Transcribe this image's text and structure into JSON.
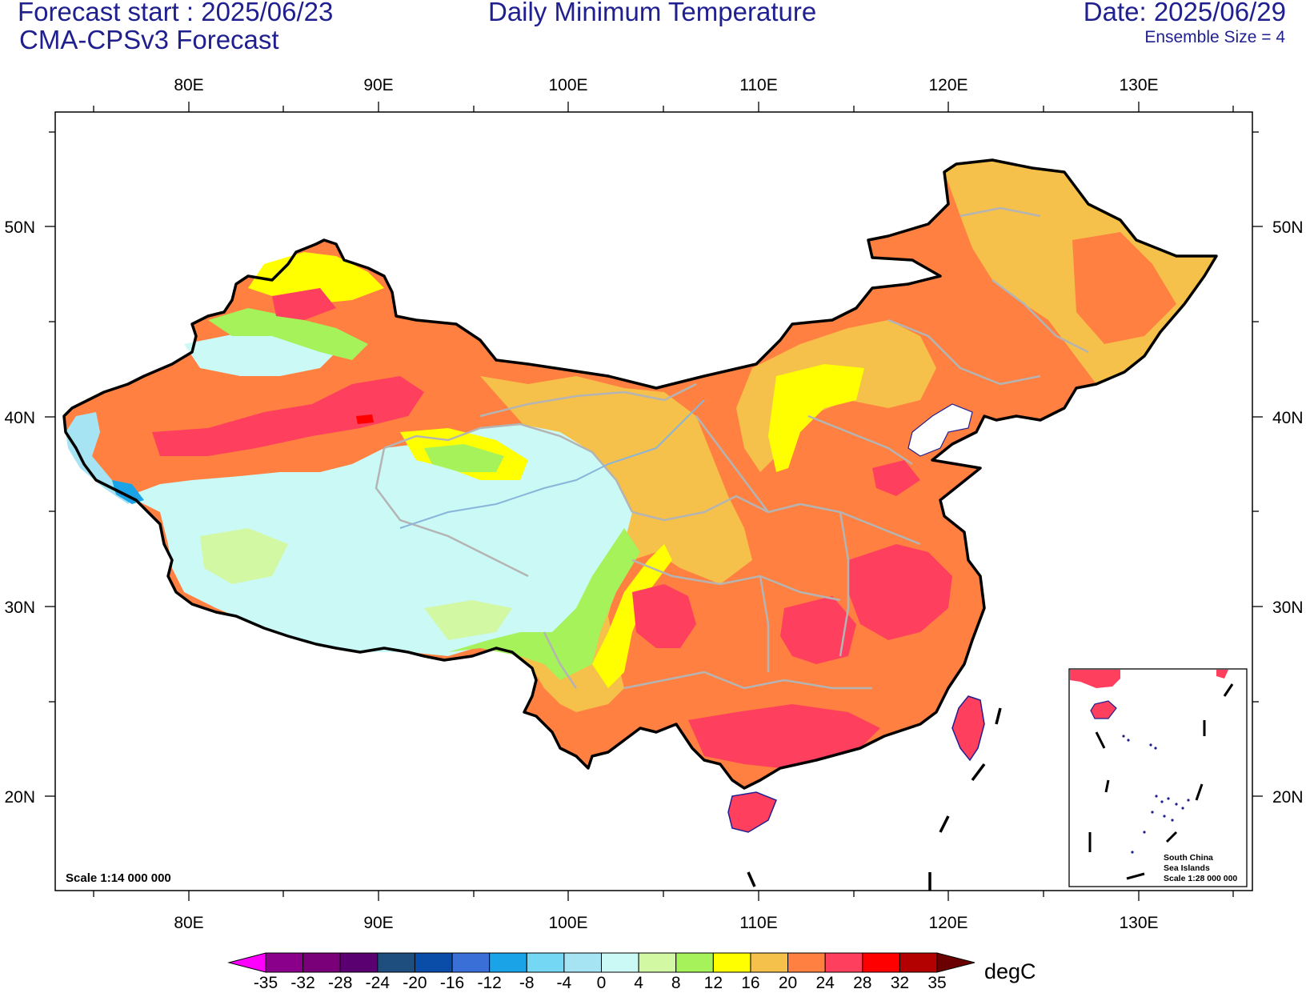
{
  "header": {
    "forecast_start": "Forecast start : 2025/06/23",
    "model": "CMA-CPSv3 Forecast",
    "title": "Daily Minimum Temperature",
    "date": "Date: 2025/06/29",
    "ensemble": "Ensemble Size = 4"
  },
  "map": {
    "longitude_labels": [
      "80E",
      "90E",
      "100E",
      "110E",
      "120E",
      "130E"
    ],
    "latitude_labels": [
      "50N",
      "40N",
      "30N",
      "20N"
    ],
    "scale_text": "Scale 1:14 000 000",
    "inset": {
      "line1": "South China",
      "line2": "Sea Islands",
      "line3": "Scale 1:28 000 000"
    }
  },
  "colorbar": {
    "unit": "degC",
    "labels": [
      "-35",
      "-32",
      "-28",
      "-24",
      "-20",
      "-16",
      "-12",
      "-8",
      "-4",
      "0",
      "4",
      "8",
      "12",
      "16",
      "20",
      "24",
      "28",
      "32",
      "35"
    ],
    "colors": [
      "#8b008b",
      "#7a007a",
      "#5a0070",
      "#1d4e7d",
      "#0a4da8",
      "#3a6fd8",
      "#1aa3e6",
      "#74d7f4",
      "#a6e3f3",
      "#caf9f6",
      "#d3f8a4",
      "#a6f25a",
      "#ffff00",
      "#f5c14a",
      "#ff8040",
      "#ff3f5e",
      "#ff0000",
      "#b30000"
    ],
    "low_end_color": "#ff00ff",
    "high_end_color": "#6b0000"
  },
  "temperature_region_colors": {
    "tibet_plateau": "#caf9f6",
    "xinjiang_basin": "#ff8040",
    "hot_core": "#ff3f5e",
    "northeast": "#f5c14a",
    "yellow_band": "#ffff00",
    "green_band": "#a6f25a"
  }
}
